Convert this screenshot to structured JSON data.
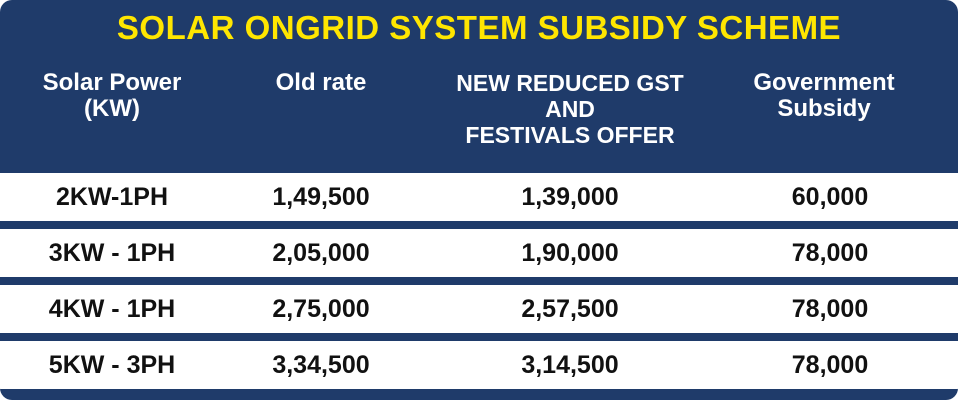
{
  "title": "SOLAR ONGRID SYSTEM SUBSIDY SCHEME",
  "headers": {
    "power": "Solar Power\n(KW)",
    "old_rate": "Old rate",
    "new_rate": "NEW REDUCED GST\nAND\nFESTIVALS OFFER",
    "subsidy": "Government\nSubsidy"
  },
  "rows": [
    {
      "power": "2KW-1PH",
      "old_rate": "1,49,500",
      "new_rate": "1,39,000",
      "subsidy": "60,000"
    },
    {
      "power": "3KW - 1PH",
      "old_rate": "2,05,000",
      "new_rate": "1,90,000",
      "subsidy": "78,000"
    },
    {
      "power": "4KW - 1PH",
      "old_rate": "2,75,000",
      "new_rate": "2,57,500",
      "subsidy": "78,000"
    },
    {
      "power": "5KW - 3PH",
      "old_rate": "3,34,500",
      "new_rate": "3,14,500",
      "subsidy": "78,000"
    }
  ],
  "colors": {
    "background": "#1f3b6a",
    "title": "#ffe600",
    "header_text": "#ffffff",
    "row_background": "#ffffff",
    "row_text": "#111111"
  }
}
